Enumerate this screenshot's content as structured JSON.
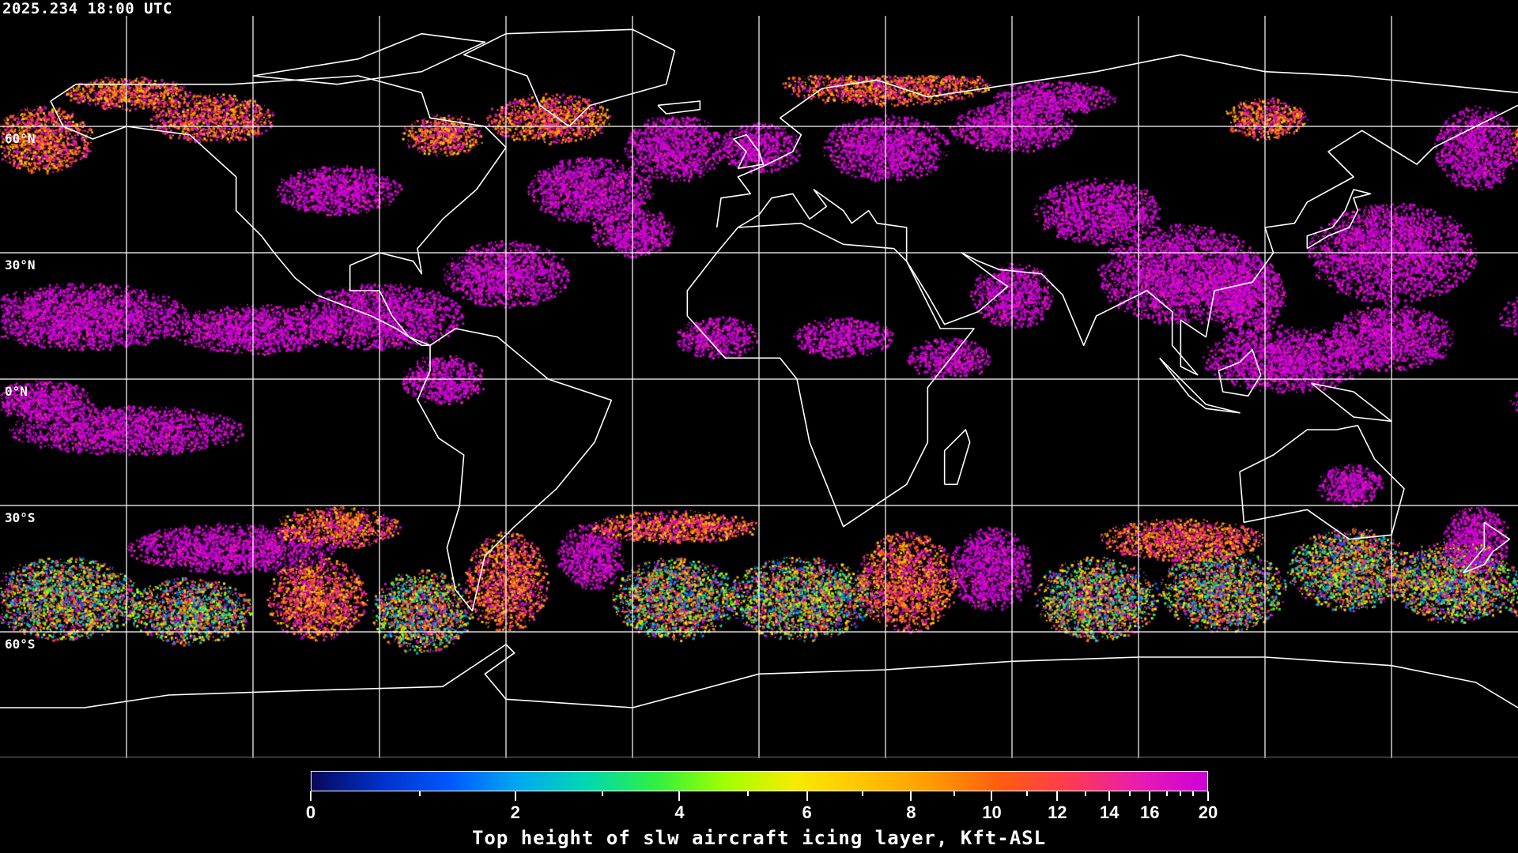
{
  "header": {
    "timestamp": "2025.234 18:00 UTC"
  },
  "map": {
    "projection": "equirectangular",
    "lon_range": [
      -180,
      180
    ],
    "lat_range": [
      -90,
      90
    ],
    "gridlines_lon_step": 30,
    "gridlines_lat_step": 30,
    "lat_labels": [
      {
        "lat": 60,
        "text": "60°N"
      },
      {
        "lat": 30,
        "text": "30°N"
      },
      {
        "lat": 0,
        "text": "0°N"
      },
      {
        "lat": -30,
        "text": "30°S"
      },
      {
        "lat": -60,
        "text": "60°S"
      }
    ],
    "coastline_color": "#ffffff",
    "grid_color": "#ffffff",
    "background": "#000000"
  },
  "colorbar": {
    "title": "Top height of slw aircraft icing layer, Kft-ASL",
    "range": [
      0,
      20
    ],
    "major_ticks": [
      "0",
      "2",
      "4",
      "6",
      "8",
      "10",
      "12",
      "14",
      "16",
      "20"
    ],
    "minor_ticks": [
      1,
      3,
      5,
      7,
      9,
      11,
      13,
      15,
      17,
      18,
      19
    ],
    "colors": [
      "#08085a",
      "#0030c8",
      "#0058ff",
      "#00a8f0",
      "#00d8b0",
      "#30f040",
      "#a0ff00",
      "#f5ec00",
      "#ffc400",
      "#ff9a00",
      "#ff5c10",
      "#ff3a50",
      "#e81cb0",
      "#cc00d8"
    ]
  }
}
